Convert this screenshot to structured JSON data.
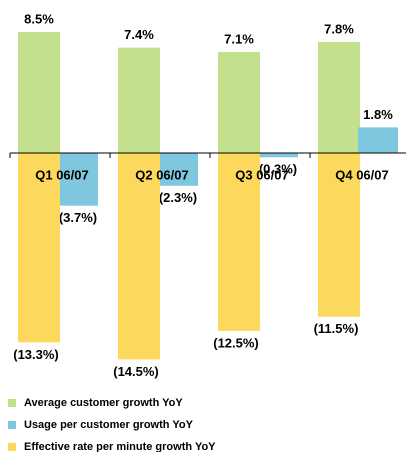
{
  "chart_data": {
    "type": "bar",
    "categories": [
      "Q1 06/07",
      "Q2 06/07",
      "Q3 06/07",
      "Q4 06/07"
    ],
    "series": [
      {
        "name": "Average customer growth YoY",
        "color": "#c3e08c",
        "values": [
          8.5,
          7.4,
          7.1,
          7.8
        ],
        "value_labels": [
          "8.5%",
          "7.4%",
          "7.1%",
          "7.8%"
        ]
      },
      {
        "name": "Usage per customer growth YoY",
        "color": "#7fc6df",
        "values": [
          -3.7,
          -2.3,
          -0.3,
          1.8
        ],
        "value_labels": [
          "(3.7%)",
          "(2.3%)",
          "(0.3%)",
          "1.8%"
        ]
      },
      {
        "name": "Effective rate per minute growth YoY",
        "color": "#fcd95c",
        "values": [
          -13.3,
          -14.5,
          -12.5,
          -11.5
        ],
        "value_labels": [
          "(13.3%)",
          "(14.5%)",
          "(12.5%)",
          "(11.5%)"
        ]
      }
    ]
  }
}
